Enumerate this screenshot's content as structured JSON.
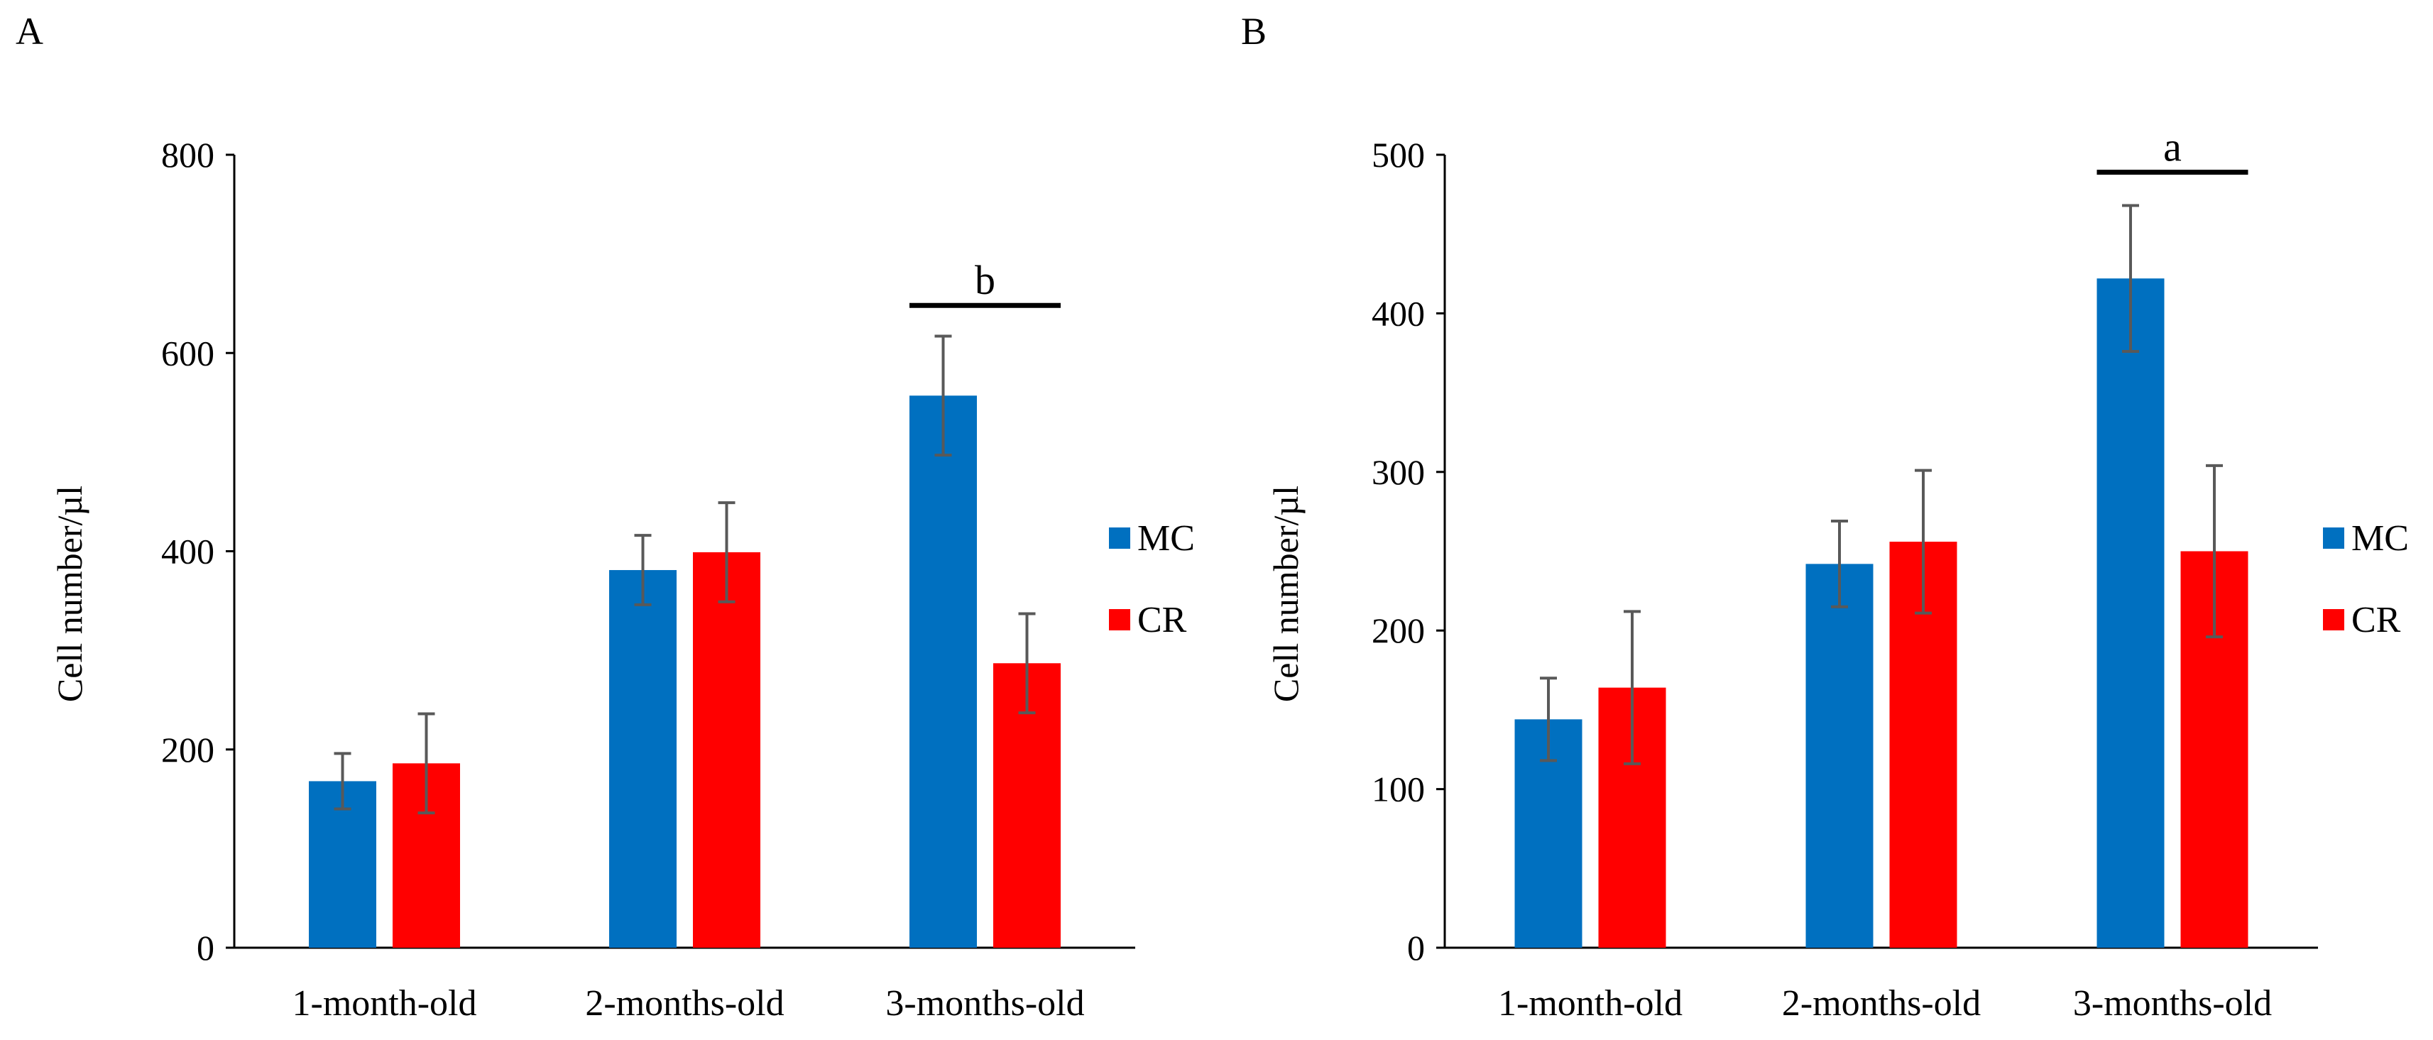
{
  "chart_data": [
    {
      "panel": "A",
      "type": "bar",
      "title": "",
      "xlabel": "",
      "ylabel": "Cell number/µl",
      "ylim": [
        0,
        800
      ],
      "yticks": [
        0,
        200,
        400,
        600,
        800
      ],
      "categories": [
        "1-month-old",
        "2-months-old",
        "3-months-old"
      ],
      "series": [
        {
          "name": "MC",
          "color": "#0070C0",
          "values": [
            168,
            381,
            557
          ],
          "errors": [
            28,
            35,
            60
          ]
        },
        {
          "name": "CR",
          "color": "#FF0000",
          "values": [
            186,
            399,
            287
          ],
          "errors": [
            50,
            50,
            50
          ]
        }
      ],
      "legend": {
        "position": "right",
        "entries": [
          "MC",
          "CR"
        ]
      },
      "annotations": [
        {
          "label": "b",
          "category_index": 2,
          "y": 648
        }
      ],
      "grid": false
    },
    {
      "panel": "B",
      "type": "bar",
      "title": "",
      "xlabel": "",
      "ylabel": "Cell number/µl",
      "ylim": [
        0,
        500
      ],
      "yticks": [
        0,
        100,
        200,
        300,
        400,
        500
      ],
      "categories": [
        "1-month-old",
        "2-months-old",
        "3-months-old"
      ],
      "series": [
        {
          "name": "MC",
          "color": "#0070C0",
          "values": [
            144,
            242,
            422
          ],
          "errors": [
            26,
            27,
            46
          ]
        },
        {
          "name": "CR",
          "color": "#FF0000",
          "values": [
            164,
            256,
            250
          ],
          "errors": [
            48,
            45,
            54
          ]
        }
      ],
      "legend": {
        "position": "right",
        "entries": [
          "MC",
          "CR"
        ]
      },
      "annotations": [
        {
          "label": "a",
          "category_index": 2,
          "y": 489
        }
      ],
      "grid": false
    }
  ]
}
